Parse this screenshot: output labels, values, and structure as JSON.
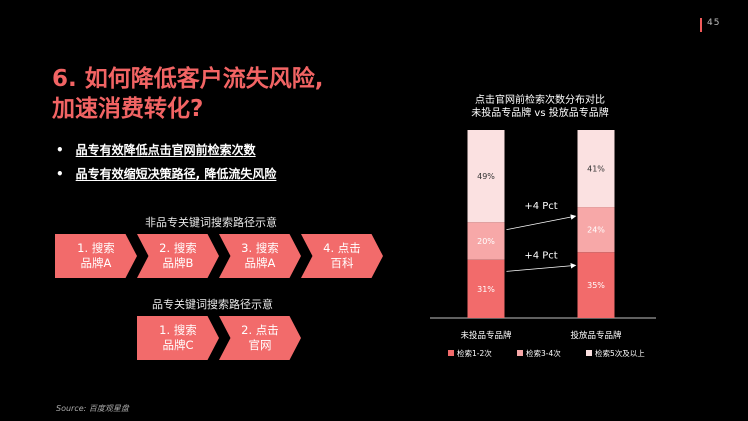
{
  "page": {
    "number": "45"
  },
  "title": "6. 如何降低客户流失风险,\n加速消费转化?",
  "bullets": [
    "品专有效降低点击官网前检索次数",
    "品专有效缩短决策路径, 降低流失风险"
  ],
  "flow1": {
    "label": "非品专关键词搜索路径示意",
    "steps": [
      "1. 搜索\n品牌A",
      "2. 搜索\n品牌B",
      "3. 搜索\n品牌A",
      "4. 点击\n百科"
    ]
  },
  "flow2": {
    "label": "品专关键词搜索路径示意",
    "steps": [
      "1. 搜索\n品牌C",
      "2. 点击\n官网"
    ]
  },
  "source": "Source: 百度观星盘",
  "colors": {
    "accent": "#f26464",
    "s1": "#f26b6b",
    "s2": "#f7a8a8",
    "s3": "#fbe1e1"
  },
  "chart_data": {
    "type": "bar",
    "stacked": true,
    "title": "点击官网前检索次数分布对比\n未投品专品牌 vs 投放品专品牌",
    "categories": [
      "未投品专品牌",
      "投放品专品牌"
    ],
    "series": [
      {
        "name": "检索1-2次",
        "values": [
          31,
          35
        ],
        "labels": [
          "31%",
          "35%"
        ]
      },
      {
        "name": "检索3-4次",
        "values": [
          20,
          24
        ],
        "labels": [
          "20%",
          "24%"
        ]
      },
      {
        "name": "检索5次及以上",
        "values": [
          49,
          41
        ],
        "labels": [
          "49%",
          "41%"
        ]
      }
    ],
    "annotations": [
      "+4 Pct",
      "+4 Pct"
    ],
    "ylim": [
      0,
      100
    ],
    "legend": "bottom"
  }
}
